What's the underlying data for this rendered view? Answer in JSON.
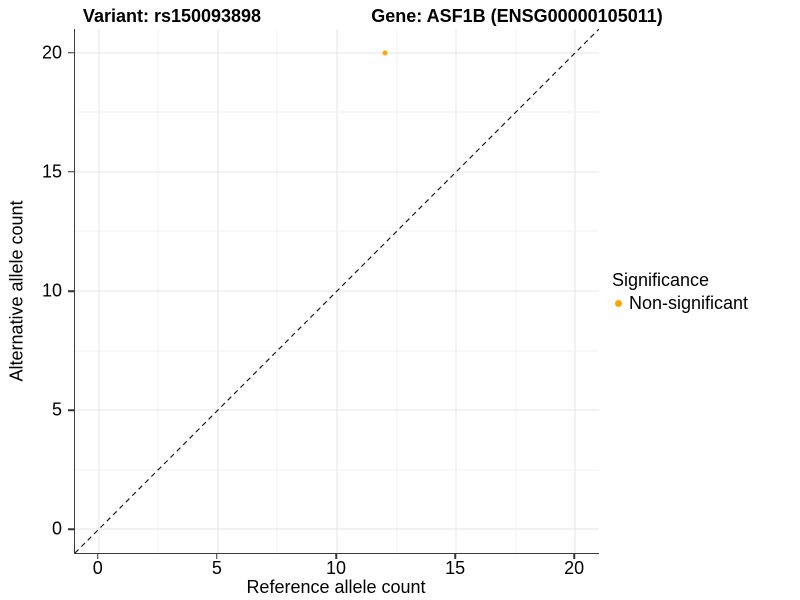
{
  "header": {
    "variant_title": "Variant: rs150093898",
    "gene_title": "Gene: ASF1B (ENSG00000105011)"
  },
  "legend": {
    "title": "Significance",
    "items": [
      {
        "label": "Non-significant",
        "color": "#FFA500"
      }
    ]
  },
  "chart_data": {
    "type": "scatter",
    "title": "Variant: rs150093898   Gene: ASF1B (ENSG00000105011)",
    "xlabel": "Reference allele count",
    "ylabel": "Alternative allele count",
    "xlim": [
      -1,
      21
    ],
    "ylim": [
      -1,
      21
    ],
    "x_ticks": [
      0,
      5,
      10,
      15,
      20
    ],
    "y_ticks": [
      0,
      5,
      10,
      15,
      20
    ],
    "grid": "major every 5 units, minor every 2.5 units, light gray",
    "legend_position": "right-center",
    "series": [
      {
        "name": "Non-significant",
        "color": "#FFA500",
        "points": [
          {
            "x": 12,
            "y": 20
          }
        ]
      }
    ],
    "reference_line": {
      "type": "identity y=x",
      "style": "dashed",
      "color": "#1a1a1a"
    }
  }
}
